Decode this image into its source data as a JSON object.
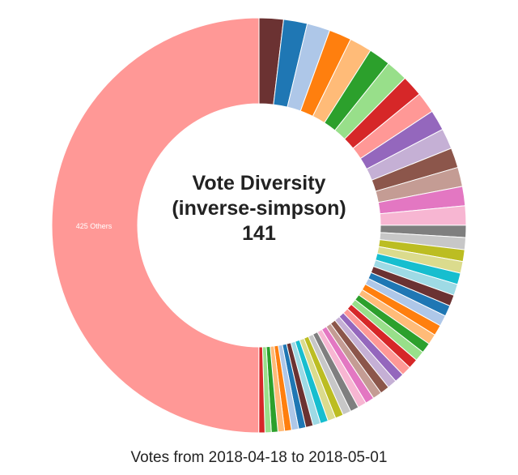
{
  "chart_data": {
    "type": "pie",
    "variant": "donut",
    "title_lines": [
      "Vote Diversity",
      "(inverse-simpson)",
      "141"
    ],
    "footer": "Votes from 2018-04-18 to 2018-05-01",
    "others_label": "425 Others",
    "others_value": 50,
    "values": [
      1.9,
      1.85,
      1.8,
      1.75,
      1.75,
      1.7,
      1.7,
      1.65,
      1.65,
      1.6,
      1.6,
      1.55,
      1.5,
      1.5,
      1.5,
      0.95,
      0.94,
      0.92,
      0.91,
      0.89,
      0.88,
      0.87,
      0.85,
      0.84,
      0.83,
      0.81,
      0.8,
      0.78,
      0.77,
      0.76,
      0.74,
      0.73,
      0.72,
      0.7,
      0.69,
      0.67,
      0.66,
      0.65,
      0.63,
      0.62,
      0.61,
      0.59,
      0.58,
      0.56,
      0.55,
      0.54,
      0.52,
      0.51,
      0.49,
      0.48
    ],
    "value_unit": "percent of votes (estimated)",
    "palette": [
      "#6b3232",
      "#1f77b4",
      "#aec7e8",
      "#ff7f0e",
      "#ffbb78",
      "#2ca02c",
      "#98df8a",
      "#d62728",
      "#ff9896",
      "#9467bd",
      "#c5b0d5",
      "#8c564b",
      "#c49c94",
      "#e377c2",
      "#f7b6d2",
      "#7f7f7f",
      "#c7c7c7",
      "#bcbd22",
      "#dbdb8d",
      "#17becf",
      "#9edae5"
    ]
  }
}
